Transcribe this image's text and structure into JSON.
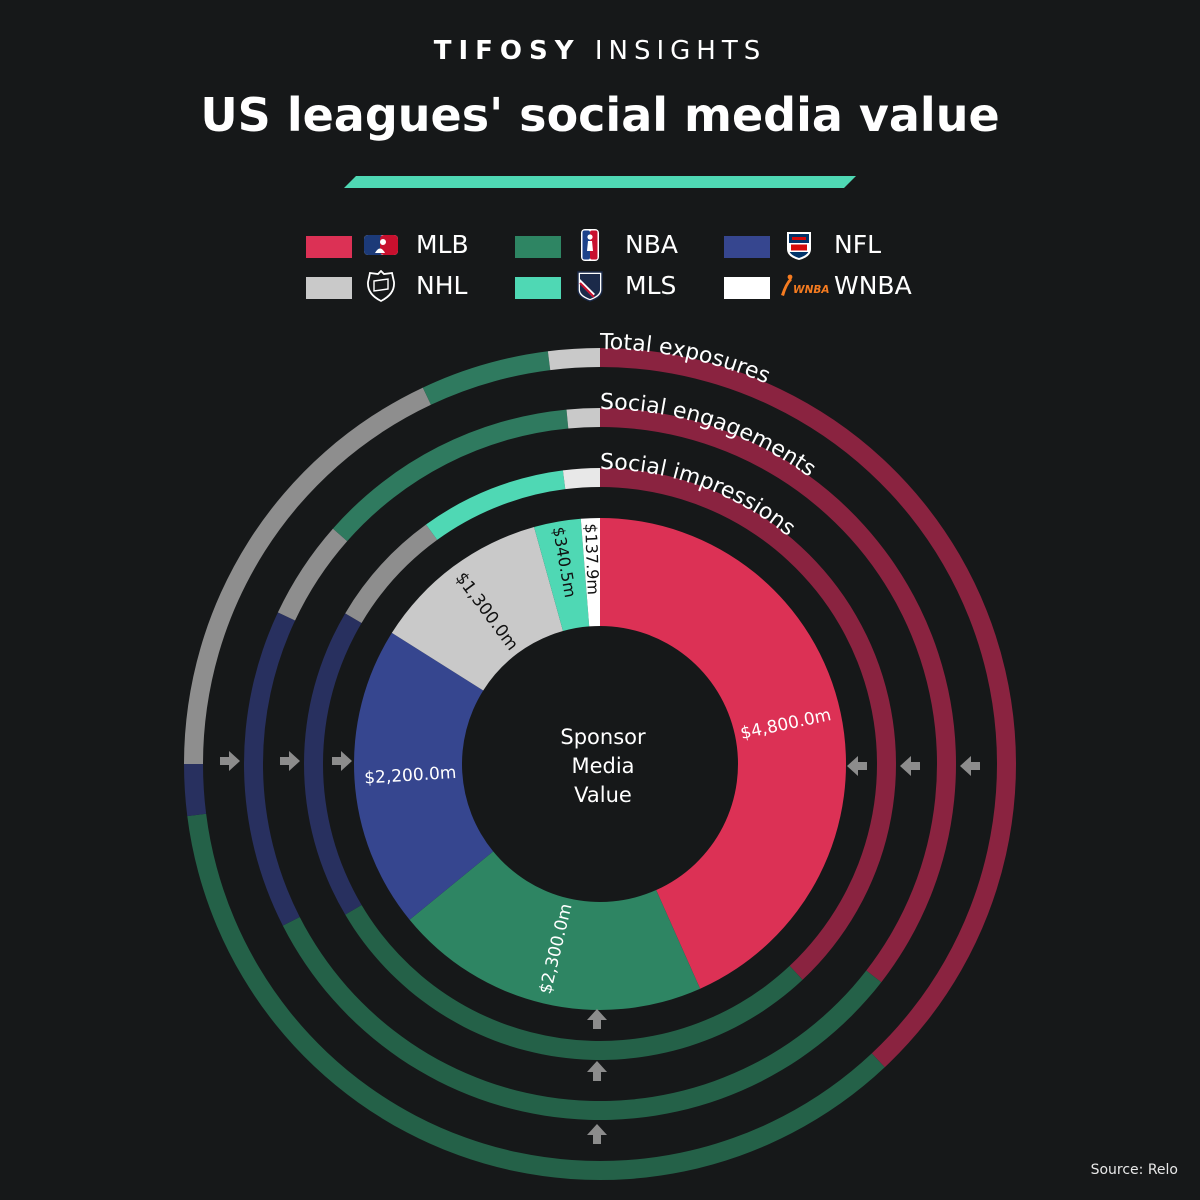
{
  "header": {
    "brand_bold": "TIFOSY",
    "brand_light": "INSIGHTS",
    "title": "US leagues' social media value"
  },
  "legend": [
    {
      "league": "MLB",
      "color": "#dc3155",
      "logo": "mlb-logo-icon"
    },
    {
      "league": "NBA",
      "color": "#2e8563",
      "logo": "nba-logo-icon"
    },
    {
      "league": "NFL",
      "color": "#36468f",
      "logo": "nfl-logo-icon"
    },
    {
      "league": "NHL",
      "color": "#c9c9c9",
      "logo": "nhl-logo-icon"
    },
    {
      "league": "MLS",
      "color": "#4fd8b4",
      "logo": "mls-logo-icon"
    },
    {
      "league": "WNBA",
      "color": "#ffffff",
      "logo": "wnba-logo-icon",
      "logo_text": "WNBA"
    }
  ],
  "chart_data": {
    "type": "pie",
    "subtype": "donut-with-concentric-rings",
    "center_label": [
      "Sponsor",
      "Media",
      "Value"
    ],
    "colors": {
      "MLB": "#dc3155",
      "NBA": "#2e8563",
      "NFL": "#36468f",
      "NHL": "#c9c9c9",
      "MLS": "#4fd8b4",
      "WNBA": "#ffffff"
    },
    "inner": {
      "name": "Sponsor Media Value",
      "unit": "$m",
      "slices": [
        {
          "league": "MLB",
          "value": 4800.0,
          "label": "$4,800.0m"
        },
        {
          "league": "NBA",
          "value": 2300.0,
          "label": "$2,300.0m"
        },
        {
          "league": "NFL",
          "value": 2200.0,
          "label": "$2,200.0m"
        },
        {
          "league": "NHL",
          "value": 1300.0,
          "label": "$1,300.0m"
        },
        {
          "league": "MLS",
          "value": 340.5,
          "label": "$340.5m"
        },
        {
          "league": "WNBA",
          "value": 137.9,
          "label": "$137.9m"
        }
      ]
    },
    "rings": [
      {
        "name": "Social impressions",
        "note": "approximate shares read from arc lengths",
        "shares": [
          {
            "league": "MLB",
            "pct": 38.0
          },
          {
            "league": "NBA",
            "pct": 28.5
          },
          {
            "league": "NFL",
            "pct": 17.0
          },
          {
            "league": "NHL",
            "pct": 6.5
          },
          {
            "league": "MLS",
            "pct": 8.0
          },
          {
            "league": "WNBA",
            "pct": 2.0
          }
        ]
      },
      {
        "name": "Social engagements",
        "note": "approximate shares read from arc lengths",
        "shares": [
          {
            "league": "MLB",
            "pct": 35.5
          },
          {
            "league": "NBA",
            "pct": 32.0
          },
          {
            "league": "NFL",
            "pct": 14.5
          },
          {
            "league": "NHL",
            "pct": 4.5
          },
          {
            "league": "MLS",
            "pct": 12.0
          },
          {
            "league": "WNBA",
            "pct": 1.5
          }
        ]
      },
      {
        "name": "Total exposures",
        "note": "approximate shares read from arc lengths",
        "shares": [
          {
            "league": "MLB",
            "pct": 38.0
          },
          {
            "league": "NBA",
            "pct": 35.0
          },
          {
            "league": "NFL",
            "pct": 2.0
          },
          {
            "league": "NHL",
            "pct": 18.0
          },
          {
            "league": "MLS",
            "pct": 5.0
          },
          {
            "league": "WNBA",
            "pct": 2.0
          }
        ]
      }
    ]
  },
  "footer": {
    "source": "Source: Relo"
  }
}
